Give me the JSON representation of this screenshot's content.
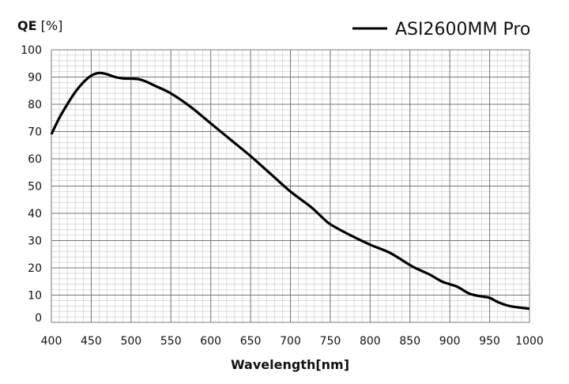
{
  "chart_data": {
    "type": "line",
    "ylabel": "QE [%]",
    "ylabel_bold": "QE",
    "ylabel_unit": " [%]",
    "xlabel": "Wavelength[nm]",
    "xlim": [
      400,
      1000
    ],
    "ylim": [
      0,
      100
    ],
    "xticks": [
      400,
      450,
      500,
      550,
      600,
      650,
      700,
      750,
      800,
      850,
      900,
      950,
      1000
    ],
    "yticks": [
      0,
      10,
      20,
      30,
      40,
      50,
      60,
      70,
      80,
      90,
      100
    ],
    "grid": true,
    "legend_placement": "top-right",
    "series": [
      {
        "name": "ASI2600MM Pro",
        "color": "#000000",
        "x": [
          400,
          410,
          420,
          430,
          440,
          450,
          460,
          470,
          480,
          490,
          500,
          510,
          520,
          530,
          550,
          575,
          600,
          625,
          650,
          675,
          700,
          725,
          740,
          750,
          775,
          800,
          825,
          850,
          860,
          875,
          890,
          900,
          910,
          925,
          940,
          950,
          960,
          975,
          1000
        ],
        "y": [
          69,
          75,
          80,
          84.5,
          88,
          90.5,
          91.5,
          91,
          90,
          89.5,
          89.4,
          89.2,
          88.2,
          86.8,
          84,
          79,
          73,
          67,
          61,
          54.5,
          48,
          42.5,
          38.5,
          36,
          32,
          28.5,
          25.5,
          21,
          19.5,
          17.5,
          15,
          14,
          13,
          10.5,
          9.5,
          9,
          7.5,
          6,
          5
        ]
      }
    ]
  }
}
